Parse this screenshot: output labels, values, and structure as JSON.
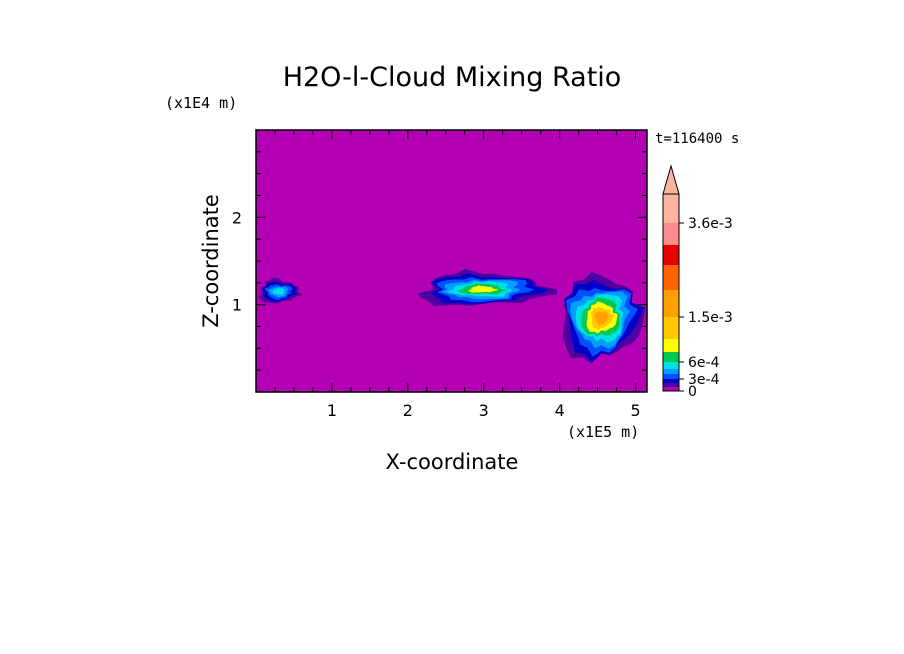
{
  "chart_data": {
    "type": "heatmap",
    "title": "H2O-l-Cloud Mixing Ratio",
    "xlabel": "X-coordinate",
    "ylabel": "Z-coordinate",
    "x_unit": "(x1E5 m)",
    "y_unit": "(x1E4 m)",
    "time_label": "t=116400 s",
    "xlim": [
      0,
      5.15
    ],
    "ylim": [
      0,
      3.0
    ],
    "x_ticks": [
      1,
      2,
      3,
      4,
      5
    ],
    "y_ticks": [
      1,
      2
    ],
    "x_minor_step": 0.25,
    "y_minor_step": 0.25,
    "background_color": "#b400b4",
    "colorbar": {
      "tick_labels": [
        "3.6e-3",
        "1.5e-3",
        "6e-4",
        "3e-4",
        "0"
      ],
      "tick_values": [
        0.0036,
        0.0015,
        0.0006,
        0.0003,
        0
      ],
      "levels": [
        0,
        0.0001,
        0.0002,
        0.0003,
        0.0004,
        0.0005,
        0.0006,
        0.0008,
        0.001,
        0.0015,
        0.002,
        0.0025,
        0.003,
        0.0036
      ],
      "colors": [
        "#b400b4",
        "#5000a0",
        "#0000c8",
        "#0050ff",
        "#00a0ff",
        "#00e0e0",
        "#00c850",
        "#ffff00",
        "#ffc800",
        "#ffa000",
        "#ff6400",
        "#e60000",
        "#ff8c8c",
        "#ffb4a0"
      ],
      "extend": "max"
    },
    "clouds": [
      {
        "name": "cloud-left",
        "x_range": [
          0.0,
          0.6
        ],
        "z_range": [
          1.0,
          1.3
        ],
        "max_level": 5
      },
      {
        "name": "cloud-center",
        "x_range": [
          2.05,
          3.9
        ],
        "z_range": [
          0.95,
          1.4
        ],
        "max_level": 7
      },
      {
        "name": "cloud-right",
        "x_range": [
          3.95,
          5.15
        ],
        "z_range": [
          0.3,
          1.4
        ],
        "max_level": 9
      }
    ]
  }
}
